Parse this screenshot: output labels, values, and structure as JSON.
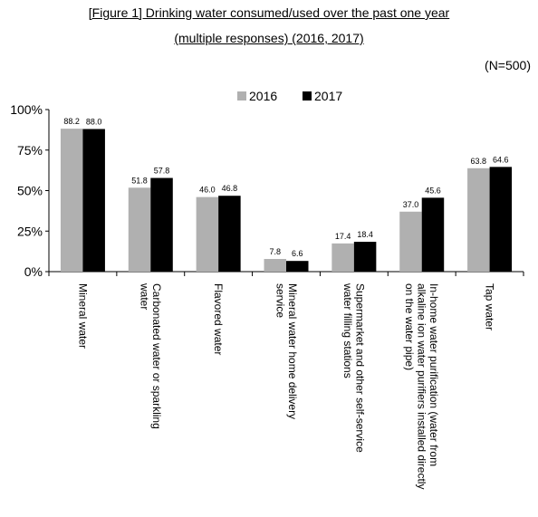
{
  "chart_data": {
    "type": "bar",
    "title_line1": "[Figure 1] Drinking water consumed/used over the past one year",
    "title_line2": "(multiple responses) (2016, 2017)",
    "note": "(N=500)",
    "categories": [
      [
        "Mineral water"
      ],
      [
        "Carbonated water or sparkling",
        "water"
      ],
      [
        "Flavored water"
      ],
      [
        "Mineral water home delivery",
        "service"
      ],
      [
        "Supermarket and other self-service",
        "water filling stations"
      ],
      [
        "In-home water purification (water from",
        "alkaline ion water purifiers installed directly",
        "on the water pipe)"
      ],
      [
        "Tap water"
      ]
    ],
    "series": [
      {
        "name": "2016",
        "color": "#b0b0b0",
        "values": [
          88.2,
          51.8,
          46.0,
          7.8,
          17.4,
          37.0,
          63.8
        ]
      },
      {
        "name": "2017",
        "color": "#000000",
        "values": [
          88.0,
          57.8,
          46.8,
          6.6,
          18.4,
          45.6,
          64.6
        ]
      }
    ],
    "value_labels": [
      [
        "88.2",
        "51.8",
        "46.0",
        "7.8",
        "17.4",
        "37.0",
        "63.8"
      ],
      [
        "88.0",
        "57.8",
        "46.8",
        "6.6",
        "18.4",
        "45.6",
        "64.6"
      ]
    ],
    "yticks": [
      "0%",
      "25%",
      "50%",
      "75%",
      "100%"
    ],
    "ylim": [
      0,
      100
    ],
    "legend_position": "top-center",
    "grid": false
  }
}
